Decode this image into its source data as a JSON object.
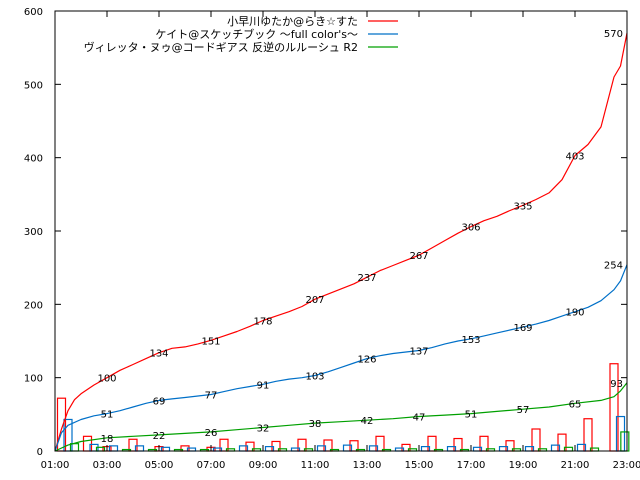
{
  "chart_data": {
    "type": "line",
    "x_ticks": [
      "01:00",
      "03:00",
      "05:00",
      "07:00",
      "09:00",
      "11:00",
      "13:00",
      "15:00",
      "17:00",
      "19:00",
      "21:00",
      "23:00"
    ],
    "y_ticks": [
      "0",
      "100",
      "200",
      "300",
      "400",
      "500",
      "600"
    ],
    "xlim": [
      "01:00",
      "23:00"
    ],
    "ylim": [
      0,
      600
    ],
    "grid": false,
    "legend_position": "top-right",
    "series": [
      {
        "name": "小早川ゆたか@らき☆すた",
        "color": "#ff0000",
        "cumulative": [
          [
            "01:00",
            0
          ],
          [
            "01:15",
            30
          ],
          [
            "01:30",
            55
          ],
          [
            "01:45",
            70
          ],
          [
            "02:00",
            78
          ],
          [
            "02:30",
            90
          ],
          [
            "03:00",
            100
          ],
          [
            "03:30",
            110
          ],
          [
            "04:00",
            118
          ],
          [
            "04:30",
            126
          ],
          [
            "05:00",
            134
          ],
          [
            "05:30",
            140
          ],
          [
            "06:00",
            142
          ],
          [
            "06:30",
            146
          ],
          [
            "07:00",
            151
          ],
          [
            "07:30",
            157
          ],
          [
            "08:00",
            163
          ],
          [
            "08:30",
            170
          ],
          [
            "09:00",
            178
          ],
          [
            "09:30",
            184
          ],
          [
            "10:00",
            190
          ],
          [
            "10:30",
            197
          ],
          [
            "11:00",
            207
          ],
          [
            "11:30",
            214
          ],
          [
            "12:00",
            221
          ],
          [
            "12:30",
            228
          ],
          [
            "13:00",
            237
          ],
          [
            "13:30",
            246
          ],
          [
            "14:00",
            253
          ],
          [
            "14:30",
            260
          ],
          [
            "15:00",
            267
          ],
          [
            "15:30",
            277
          ],
          [
            "16:00",
            287
          ],
          [
            "16:30",
            297
          ],
          [
            "17:00",
            306
          ],
          [
            "17:30",
            314
          ],
          [
            "18:00",
            320
          ],
          [
            "18:30",
            328
          ],
          [
            "19:00",
            335
          ],
          [
            "19:30",
            343
          ],
          [
            "20:00",
            352
          ],
          [
            "20:30",
            370
          ],
          [
            "21:00",
            403
          ],
          [
            "21:30",
            418
          ],
          [
            "22:00",
            442
          ],
          [
            "22:30",
            510
          ],
          [
            "22:45",
            525
          ],
          [
            "23:00",
            570
          ]
        ],
        "point_labels": [
          [
            "03:00",
            100
          ],
          [
            "05:00",
            134
          ],
          [
            "07:00",
            151
          ],
          [
            "09:00",
            178
          ],
          [
            "11:00",
            207
          ],
          [
            "13:00",
            237
          ],
          [
            "15:00",
            267
          ],
          [
            "17:00",
            306
          ],
          [
            "19:00",
            335
          ],
          [
            "21:00",
            403
          ],
          [
            "23:00",
            570
          ]
        ],
        "bars": [
          [
            "01:15",
            72
          ],
          [
            "02:15",
            20
          ],
          [
            "03:00",
            6
          ],
          [
            "04:00",
            16
          ],
          [
            "05:00",
            6
          ],
          [
            "06:00",
            7
          ],
          [
            "07:00",
            5
          ],
          [
            "07:30",
            16
          ],
          [
            "08:30",
            12
          ],
          [
            "09:30",
            13
          ],
          [
            "10:30",
            16
          ],
          [
            "11:30",
            15
          ],
          [
            "12:30",
            14
          ],
          [
            "13:30",
            20
          ],
          [
            "14:30",
            9
          ],
          [
            "15:30",
            20
          ],
          [
            "16:30",
            17
          ],
          [
            "17:30",
            20
          ],
          [
            "18:30",
            14
          ],
          [
            "19:30",
            30
          ],
          [
            "20:30",
            23
          ],
          [
            "21:30",
            44
          ],
          [
            "22:30",
            119
          ]
        ]
      },
      {
        "name": "ケイト@スケッチブック 〜full color's〜",
        "color": "#0070c8",
        "cumulative": [
          [
            "01:00",
            0
          ],
          [
            "01:15",
            25
          ],
          [
            "01:30",
            35
          ],
          [
            "02:00",
            43
          ],
          [
            "02:30",
            48
          ],
          [
            "03:00",
            51
          ],
          [
            "03:30",
            55
          ],
          [
            "04:00",
            60
          ],
          [
            "04:30",
            65
          ],
          [
            "05:00",
            69
          ],
          [
            "05:30",
            71
          ],
          [
            "06:00",
            73
          ],
          [
            "06:30",
            75
          ],
          [
            "07:00",
            77
          ],
          [
            "07:30",
            81
          ],
          [
            "08:00",
            85
          ],
          [
            "08:30",
            88
          ],
          [
            "09:00",
            91
          ],
          [
            "09:30",
            95
          ],
          [
            "10:00",
            98
          ],
          [
            "10:30",
            100
          ],
          [
            "11:00",
            103
          ],
          [
            "11:30",
            108
          ],
          [
            "12:00",
            114
          ],
          [
            "12:30",
            120
          ],
          [
            "13:00",
            126
          ],
          [
            "13:30",
            130
          ],
          [
            "14:00",
            133
          ],
          [
            "14:30",
            135
          ],
          [
            "15:00",
            137
          ],
          [
            "15:30",
            141
          ],
          [
            "16:00",
            146
          ],
          [
            "16:30",
            150
          ],
          [
            "17:00",
            153
          ],
          [
            "17:30",
            157
          ],
          [
            "18:00",
            161
          ],
          [
            "18:30",
            165
          ],
          [
            "19:00",
            169
          ],
          [
            "19:30",
            173
          ],
          [
            "20:00",
            178
          ],
          [
            "20:30",
            184
          ],
          [
            "21:00",
            190
          ],
          [
            "21:30",
            196
          ],
          [
            "22:00",
            205
          ],
          [
            "22:30",
            220
          ],
          [
            "22:45",
            232
          ],
          [
            "23:00",
            254
          ]
        ],
        "point_labels": [
          [
            "03:00",
            51
          ],
          [
            "05:00",
            69
          ],
          [
            "07:00",
            77
          ],
          [
            "09:00",
            91
          ],
          [
            "11:00",
            103
          ],
          [
            "13:00",
            126
          ],
          [
            "15:00",
            137
          ],
          [
            "17:00",
            153
          ],
          [
            "19:00",
            169
          ],
          [
            "21:00",
            190
          ],
          [
            "23:00",
            254
          ]
        ],
        "bars": [
          [
            "01:30",
            43
          ],
          [
            "02:30",
            9
          ],
          [
            "03:15",
            7
          ],
          [
            "04:15",
            7
          ],
          [
            "05:15",
            5
          ],
          [
            "06:15",
            4
          ],
          [
            "07:15",
            4
          ],
          [
            "08:15",
            7
          ],
          [
            "09:15",
            6
          ],
          [
            "10:15",
            4
          ],
          [
            "11:15",
            7
          ],
          [
            "12:15",
            8
          ],
          [
            "13:15",
            7
          ],
          [
            "14:15",
            4
          ],
          [
            "15:15",
            6
          ],
          [
            "16:15",
            6
          ],
          [
            "17:15",
            5
          ],
          [
            "18:15",
            6
          ],
          [
            "19:15",
            6
          ],
          [
            "20:15",
            8
          ],
          [
            "21:15",
            9
          ],
          [
            "22:45",
            47
          ]
        ]
      },
      {
        "name": "ヴィレッタ・ヌゥ@コードギアス 反逆のルルーシュ R2",
        "color": "#00a000",
        "cumulative": [
          [
            "01:00",
            0
          ],
          [
            "01:30",
            8
          ],
          [
            "02:00",
            13
          ],
          [
            "03:00",
            18
          ],
          [
            "04:00",
            20
          ],
          [
            "05:00",
            22
          ],
          [
            "06:00",
            24
          ],
          [
            "07:00",
            26
          ],
          [
            "08:00",
            29
          ],
          [
            "09:00",
            32
          ],
          [
            "10:00",
            35
          ],
          [
            "11:00",
            38
          ],
          [
            "12:00",
            40
          ],
          [
            "13:00",
            42
          ],
          [
            "14:00",
            44
          ],
          [
            "15:00",
            47
          ],
          [
            "16:00",
            49
          ],
          [
            "17:00",
            51
          ],
          [
            "18:00",
            54
          ],
          [
            "19:00",
            57
          ],
          [
            "20:00",
            60
          ],
          [
            "21:00",
            65
          ],
          [
            "22:00",
            69
          ],
          [
            "22:30",
            74
          ],
          [
            "22:45",
            82
          ],
          [
            "23:00",
            93
          ]
        ],
        "point_labels": [
          [
            "03:00",
            18
          ],
          [
            "05:00",
            22
          ],
          [
            "07:00",
            26
          ],
          [
            "09:00",
            32
          ],
          [
            "11:00",
            38
          ],
          [
            "13:00",
            42
          ],
          [
            "15:00",
            47
          ],
          [
            "17:00",
            51
          ],
          [
            "19:00",
            57
          ],
          [
            "21:00",
            65
          ],
          [
            "23:00",
            93
          ]
        ],
        "bars": [
          [
            "01:45",
            10
          ],
          [
            "02:45",
            5
          ],
          [
            "03:45",
            2
          ],
          [
            "04:45",
            2
          ],
          [
            "05:45",
            2
          ],
          [
            "06:45",
            2
          ],
          [
            "07:45",
            3
          ],
          [
            "08:45",
            3
          ],
          [
            "09:45",
            3
          ],
          [
            "10:45",
            3
          ],
          [
            "11:45",
            2
          ],
          [
            "12:45",
            2
          ],
          [
            "13:45",
            2
          ],
          [
            "14:45",
            3
          ],
          [
            "15:45",
            2
          ],
          [
            "16:45",
            2
          ],
          [
            "17:45",
            3
          ],
          [
            "18:45",
            3
          ],
          [
            "19:45",
            3
          ],
          [
            "20:45",
            5
          ],
          [
            "21:45",
            4
          ],
          [
            "22:55",
            26
          ]
        ]
      }
    ]
  }
}
